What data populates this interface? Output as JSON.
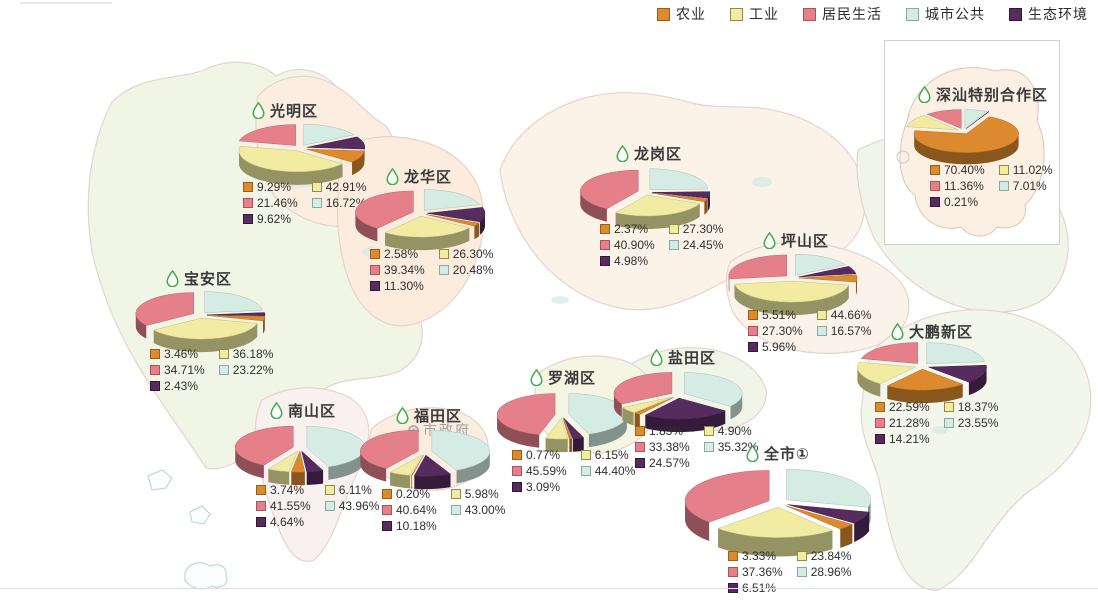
{
  "legend": {
    "items": [
      {
        "label": "农业",
        "fill": "#DD8A2E",
        "border": "#9c5e14"
      },
      {
        "label": "工业",
        "fill": "#F1ECA2",
        "border": "#8f8c45"
      },
      {
        "label": "居民生活",
        "fill": "#E5808B",
        "border": "#af505c"
      },
      {
        "label": "城市公共",
        "fill": "#D5ECE5",
        "border": "#84aba4"
      },
      {
        "label": "生态环境",
        "fill": "#562C5F",
        "border": "#33183c"
      }
    ]
  },
  "map": {
    "landmark_label": "市政府"
  },
  "chart_data": [
    {
      "type": "pie",
      "title": "光明区",
      "categories": [
        "农业",
        "工业",
        "居民生活",
        "城市公共",
        "生态环境"
      ],
      "values": [
        9.29,
        42.91,
        21.46,
        16.72,
        9.62
      ]
    },
    {
      "type": "pie",
      "title": "龙华区",
      "categories": [
        "农业",
        "工业",
        "居民生活",
        "城市公共",
        "生态环境"
      ],
      "values": [
        2.58,
        26.3,
        39.34,
        20.48,
        11.3
      ]
    },
    {
      "type": "pie",
      "title": "龙岗区",
      "categories": [
        "农业",
        "工业",
        "居民生活",
        "城市公共",
        "生态环境"
      ],
      "values": [
        2.37,
        27.3,
        40.9,
        24.45,
        4.98
      ]
    },
    {
      "type": "pie",
      "title": "坪山区",
      "categories": [
        "农业",
        "工业",
        "居民生活",
        "城市公共",
        "生态环境"
      ],
      "values": [
        5.51,
        44.66,
        27.3,
        16.57,
        5.96
      ]
    },
    {
      "type": "pie",
      "title": "宝安区",
      "categories": [
        "农业",
        "工业",
        "居民生活",
        "城市公共",
        "生态环境"
      ],
      "values": [
        3.46,
        36.18,
        34.71,
        23.22,
        2.43
      ]
    },
    {
      "type": "pie",
      "title": "南山区",
      "categories": [
        "农业",
        "工业",
        "居民生活",
        "城市公共",
        "生态环境"
      ],
      "values": [
        3.74,
        6.11,
        41.55,
        43.96,
        4.64
      ]
    },
    {
      "type": "pie",
      "title": "福田区",
      "categories": [
        "农业",
        "工业",
        "居民生活",
        "城市公共",
        "生态环境"
      ],
      "values": [
        0.2,
        5.98,
        40.64,
        43.0,
        10.18
      ]
    },
    {
      "type": "pie",
      "title": "罗湖区",
      "categories": [
        "农业",
        "工业",
        "居民生活",
        "城市公共",
        "生态环境"
      ],
      "values": [
        0.77,
        6.15,
        45.59,
        44.4,
        3.09
      ]
    },
    {
      "type": "pie",
      "title": "盐田区",
      "categories": [
        "农业",
        "工业",
        "居民生活",
        "城市公共",
        "生态环境"
      ],
      "values": [
        1.83,
        4.9,
        33.38,
        35.32,
        24.57
      ]
    },
    {
      "type": "pie",
      "title": "大鹏新区",
      "categories": [
        "农业",
        "工业",
        "居民生活",
        "城市公共",
        "生态环境"
      ],
      "values": [
        22.59,
        18.37,
        21.28,
        23.55,
        14.21
      ]
    },
    {
      "type": "pie",
      "title": "全市①",
      "categories": [
        "农业",
        "工业",
        "居民生活",
        "城市公共",
        "生态环境"
      ],
      "values": [
        3.33,
        23.84,
        37.36,
        28.96,
        6.51
      ]
    },
    {
      "type": "pie",
      "title": "深汕特别合作区",
      "categories": [
        "农业",
        "工业",
        "居民生活",
        "城市公共",
        "生态环境"
      ],
      "values": [
        70.4,
        11.02,
        11.36,
        7.01,
        0.21
      ]
    }
  ]
}
